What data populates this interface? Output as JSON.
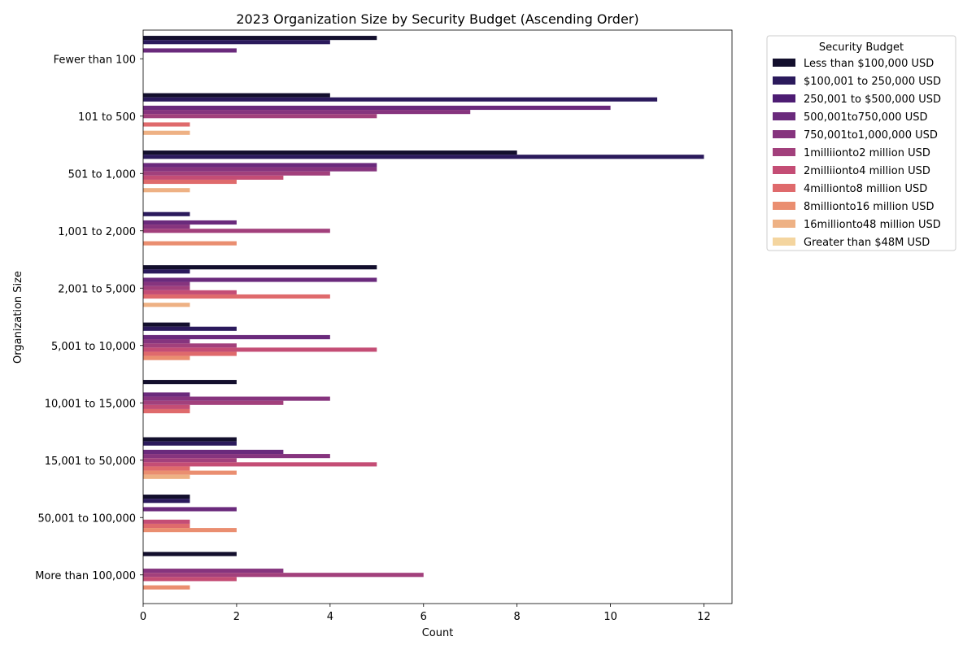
{
  "chart_data": {
    "type": "bar",
    "orientation": "horizontal",
    "title": "2023 Organization Size by Security Budget (Ascending Order)",
    "xlabel": "Count",
    "ylabel": "Organization Size",
    "xlim": [
      0,
      12.6
    ],
    "xticks": [
      0,
      2,
      4,
      6,
      8,
      10,
      12
    ],
    "grid": false,
    "legend_title": "Security Budget",
    "legend_placement": "outside-top-right",
    "categories": [
      "Fewer than 100",
      "101 to 500",
      "501 to 1,000",
      "1,001 to 2,000",
      "2,001 to 5,000",
      "5,001 to 10,000",
      "10,001 to 15,000",
      "15,001 to 50,000",
      "50,001 to 100,000",
      "More than 100,000"
    ],
    "series": [
      {
        "name": "Less than $100,000 USD",
        "color": "#130f2d",
        "values": [
          5,
          4,
          8,
          0,
          5,
          1,
          2,
          2,
          1,
          2
        ]
      },
      {
        "name": "$100,001 to 250,000 USD",
        "color": "#2b1a5c",
        "values": [
          4,
          11,
          12,
          1,
          1,
          2,
          0,
          2,
          1,
          0
        ]
      },
      {
        "name": "250,001 to $500,000 USD",
        "color": "#4d1c73",
        "values": [
          0,
          0,
          0,
          0,
          0,
          0,
          0,
          0,
          0,
          0
        ]
      },
      {
        "name": "$500,001 to $750,000 USD",
        "color": "#6a2a7c",
        "values": [
          2,
          10,
          5,
          2,
          5,
          4,
          1,
          3,
          2,
          0
        ]
      },
      {
        "name": "$750,001 to $1,000,000 USD",
        "color": "#86347e",
        "values": [
          0,
          7,
          5,
          1,
          1,
          1,
          4,
          4,
          0,
          3
        ]
      },
      {
        "name": "$1 million to $2 million USD",
        "color": "#a2407c",
        "values": [
          0,
          5,
          4,
          4,
          1,
          2,
          3,
          2,
          0,
          6
        ]
      },
      {
        "name": "$2 million to $4 million USD",
        "color": "#c44d75",
        "values": [
          0,
          0,
          3,
          0,
          2,
          5,
          1,
          5,
          1,
          2
        ]
      },
      {
        "name": "$4 million to $8 million USD",
        "color": "#df6a6c",
        "values": [
          0,
          1,
          2,
          0,
          4,
          2,
          1,
          1,
          1,
          0
        ]
      },
      {
        "name": "$8 million to $16 million USD",
        "color": "#ea8e70",
        "values": [
          0,
          0,
          0,
          2,
          0,
          1,
          0,
          2,
          2,
          1
        ]
      },
      {
        "name": "$16 million to $48 million USD",
        "color": "#eeb184",
        "values": [
          0,
          1,
          1,
          0,
          1,
          0,
          0,
          1,
          0,
          0
        ]
      },
      {
        "name": "Greater than $48M USD",
        "color": "#f4d59f",
        "values": [
          0,
          0,
          0,
          0,
          0,
          0,
          0,
          0,
          0,
          0
        ]
      }
    ]
  },
  "legend_labels": [
    "Less than $100,000 USD",
    "$100,001 to 250,000 USD",
    "250,001 to $500,000 USD",
    "500,001to750,000 USD",
    "750,001to1,000,000 USD",
    "1milliionto2 million USD",
    "2milliionto4 million USD",
    "4millionto8 million USD",
    "8millionto16 million USD",
    "16millionto48 million USD",
    "Greater than $48M USD"
  ]
}
